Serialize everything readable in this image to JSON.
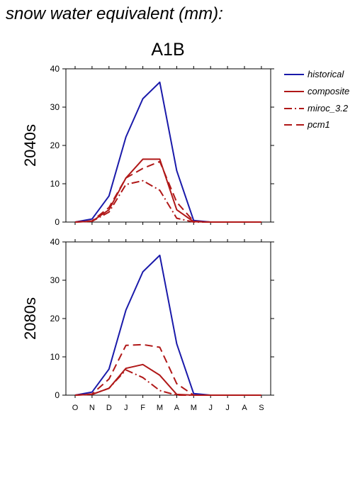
{
  "header": {
    "title": "snow water equivalent (mm):",
    "scenario": "A1B"
  },
  "legend": {
    "items": [
      {
        "label": "historical",
        "color": "#1a1aaa",
        "dash": "solid"
      },
      {
        "label": "composite",
        "color": "#b01818",
        "dash": "solid"
      },
      {
        "label": "miroc_3.2",
        "color": "#b01818",
        "dash": "dashdot"
      },
      {
        "label": "pcm1",
        "color": "#b01818",
        "dash": "dash"
      }
    ]
  },
  "chart_data": [
    {
      "type": "line",
      "ylabel": "2040s",
      "categories": [
        "O",
        "N",
        "D",
        "J",
        "F",
        "M",
        "A",
        "M",
        "J",
        "J",
        "A",
        "S"
      ],
      "ylim": [
        0,
        40
      ],
      "yticks": [
        0,
        10,
        20,
        30,
        40
      ],
      "show_x_tick_labels": false,
      "series": [
        {
          "name": "historical",
          "color": "#1a1aaa",
          "dash": "solid",
          "values": [
            0,
            0.8,
            6.8,
            22.2,
            32.2,
            36.5,
            13.4,
            0.4,
            0,
            0,
            0,
            0
          ]
        },
        {
          "name": "composite",
          "color": "#b01818",
          "dash": "solid",
          "values": [
            0,
            0.2,
            3.2,
            11.5,
            16.4,
            16.4,
            3.2,
            0.1,
            0,
            0,
            0,
            0
          ]
        },
        {
          "name": "miroc_3.2",
          "color": "#b01818",
          "dash": "dashdot",
          "values": [
            0,
            0.2,
            2.6,
            9.8,
            10.8,
            8.3,
            1.0,
            0,
            0,
            0,
            0,
            0
          ]
        },
        {
          "name": "pcm1",
          "color": "#b01818",
          "dash": "dash",
          "values": [
            0,
            0.3,
            3.8,
            11.5,
            14.0,
            15.8,
            5.2,
            0.2,
            0,
            0,
            0,
            0
          ]
        }
      ]
    },
    {
      "type": "line",
      "ylabel": "2080s",
      "categories": [
        "O",
        "N",
        "D",
        "J",
        "F",
        "M",
        "A",
        "M",
        "J",
        "J",
        "A",
        "S"
      ],
      "ylim": [
        0,
        40
      ],
      "yticks": [
        0,
        10,
        20,
        30,
        40
      ],
      "show_x_tick_labels": true,
      "series": [
        {
          "name": "historical",
          "color": "#1a1aaa",
          "dash": "solid",
          "values": [
            0,
            0.8,
            6.8,
            22.2,
            32.2,
            36.5,
            13.4,
            0.4,
            0,
            0,
            0,
            0
          ]
        },
        {
          "name": "composite",
          "color": "#b01818",
          "dash": "solid",
          "values": [
            0,
            0.2,
            1.8,
            7.0,
            8.0,
            5.2,
            0.2,
            0,
            0,
            0,
            0,
            0
          ]
        },
        {
          "name": "miroc_3.2",
          "color": "#b01818",
          "dash": "dashdot",
          "values": [
            0,
            0.2,
            1.8,
            6.6,
            4.6,
            1.2,
            0,
            0,
            0,
            0,
            0,
            0
          ]
        },
        {
          "name": "pcm1",
          "color": "#b01818",
          "dash": "dash",
          "values": [
            0,
            0.3,
            4.2,
            13.0,
            13.2,
            12.5,
            3.0,
            0,
            0,
            0,
            0,
            0
          ]
        }
      ]
    }
  ]
}
